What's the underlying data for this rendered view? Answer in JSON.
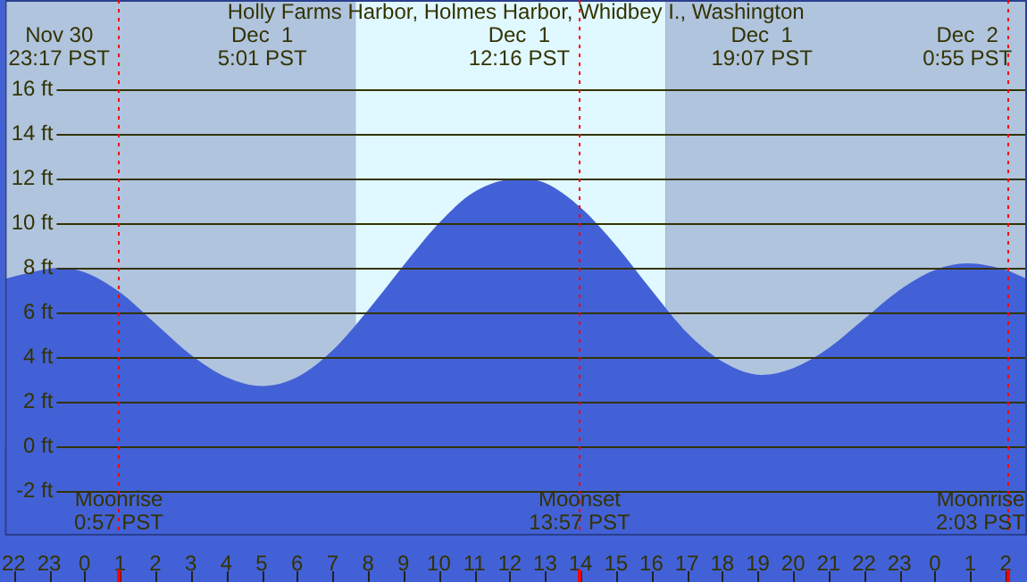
{
  "chart_data": {
    "type": "area",
    "title": "Holly Farms Harbor, Holmes Harbor, Whidbey I., Washington",
    "series": [
      {
        "color": "#4361d6",
        "x": [
          "--11-30T21:45",
          "--11-30T22:30",
          "--11-30T23:17",
          "--12-01T00:00",
          "--12-01T01:00",
          "--12-01T02:00",
          "--12-01T03:00",
          "--12-01T04:00",
          "--12-01T05:01",
          "--12-01T06:00",
          "--12-01T07:00",
          "--12-01T08:00",
          "--12-01T09:00",
          "--12-01T10:00",
          "--12-01T11:00",
          "--12-01T12:16",
          "--12-01T13:00",
          "--12-01T14:00",
          "--12-01T15:00",
          "--12-01T16:00",
          "--12-01T17:00",
          "--12-01T18:00",
          "--12-01T19:07",
          "--12-01T20:00",
          "--12-01T21:00",
          "--12-01T22:00",
          "--12-01T23:00",
          "--12-02T00:00",
          "--12-02T00:55",
          "--12-02T02:00",
          "--12-02T02:36"
        ],
        "values": [
          7.5,
          7.8,
          8.0,
          7.8,
          6.9,
          5.5,
          4.1,
          3.1,
          2.7,
          3.1,
          4.3,
          6.1,
          8.1,
          10.0,
          11.4,
          12.0,
          11.8,
          10.7,
          9.0,
          7.0,
          5.1,
          3.8,
          3.2,
          3.5,
          4.4,
          5.7,
          7.0,
          7.9,
          8.2,
          7.9,
          7.5
        ]
      }
    ],
    "xlim": [
      "--11-30T21:45",
      "--12-02T02:36"
    ],
    "xticks": [
      {
        "value": "--11-30T22:00",
        "label": "22"
      },
      {
        "value": "--11-30T23:00",
        "label": "23"
      },
      {
        "value": "--12-01T00:00",
        "label": "0"
      },
      {
        "value": "--12-01T01:00",
        "label": "1"
      },
      {
        "value": "--12-01T02:00",
        "label": "2"
      },
      {
        "value": "--12-01T03:00",
        "label": "3"
      },
      {
        "value": "--12-01T04:00",
        "label": "4"
      },
      {
        "value": "--12-01T05:00",
        "label": "5"
      },
      {
        "value": "--12-01T06:00",
        "label": "6"
      },
      {
        "value": "--12-01T07:00",
        "label": "7"
      },
      {
        "value": "--12-01T08:00",
        "label": "8"
      },
      {
        "value": "--12-01T09:00",
        "label": "9"
      },
      {
        "value": "--12-01T10:00",
        "label": "10"
      },
      {
        "value": "--12-01T11:00",
        "label": "11"
      },
      {
        "value": "--12-01T12:00",
        "label": "12"
      },
      {
        "value": "--12-01T13:00",
        "label": "13"
      },
      {
        "value": "--12-01T14:00",
        "label": "14"
      },
      {
        "value": "--12-01T15:00",
        "label": "15"
      },
      {
        "value": "--12-01T16:00",
        "label": "16"
      },
      {
        "value": "--12-01T17:00",
        "label": "17"
      },
      {
        "value": "--12-01T18:00",
        "label": "18"
      },
      {
        "value": "--12-01T19:00",
        "label": "19"
      },
      {
        "value": "--12-01T20:00",
        "label": "20"
      },
      {
        "value": "--12-01T21:00",
        "label": "21"
      },
      {
        "value": "--12-01T22:00",
        "label": "22"
      },
      {
        "value": "--12-01T23:00",
        "label": "23"
      },
      {
        "value": "--12-02T00:00",
        "label": "0"
      },
      {
        "value": "--12-02T01:00",
        "label": "1"
      },
      {
        "value": "--12-02T02:00",
        "label": "2"
      }
    ],
    "ylim": [
      -4,
      20
    ],
    "yticks": [
      {
        "value": -2,
        "label": "-2 ft"
      },
      {
        "value": 0,
        "label": "0 ft"
      },
      {
        "value": 2,
        "label": "2 ft"
      },
      {
        "value": 4,
        "label": "4 ft"
      },
      {
        "value": 6,
        "label": "6 ft"
      },
      {
        "value": 8,
        "label": "8 ft"
      },
      {
        "value": 10,
        "label": "10 ft"
      },
      {
        "value": 12,
        "label": "12 ft"
      },
      {
        "value": 14,
        "label": "14 ft"
      },
      {
        "value": 16,
        "label": "16 ft"
      }
    ],
    "bands": [
      {
        "axis": "x",
        "from": "--11-30T21:45",
        "to": "--12-01T07:39",
        "color": "#b0c4de"
      },
      {
        "axis": "x",
        "from": "--12-01T07:39",
        "to": "--12-01T16:24",
        "color": "#e0f8ff"
      },
      {
        "axis": "x",
        "from": "--12-01T16:24",
        "to": "--12-02T02:36",
        "color": "#b0c4de"
      }
    ],
    "ref_lines": [
      {
        "axis": "x",
        "value": "--12-01T00:57",
        "label": "Moonrise\n0:57 PST",
        "color": "#ff0000"
      },
      {
        "axis": "x",
        "value": "--12-01T13:57",
        "label": "Moonset\n13:57 PST",
        "color": "#ff0000"
      },
      {
        "axis": "x",
        "value": "--12-02T02:03",
        "label": "Moonrise\n2:03 PST",
        "color": "#ff0000"
      }
    ],
    "annotations": [
      "Nov 30\n23:17 PST",
      "Dec  1\n5:01 PST",
      "Dec  1\n12:16 PST",
      "Dec  1\n19:07 PST",
      "Dec  2\n0:55 PST"
    ],
    "grid": "y",
    "legend": false,
    "marker": "none"
  }
}
